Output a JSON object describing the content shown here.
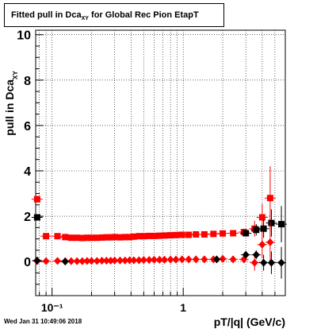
{
  "chart_data": {
    "type": "scatter",
    "title_main": "Fitted pull in Dca",
    "title_sub": "XY",
    "title_rest": " for Global Rec Pion EtapT",
    "xlabel": "pT/|q| (GeV/c)",
    "ylabel": "pull in Dca",
    "ylabel_sub": "XY",
    "x_scale": "log",
    "xlim": [
      0.075,
      6.0
    ],
    "ylim": [
      -1.5,
      10.2
    ],
    "x_tick_labels": [
      "10⁻¹",
      "1"
    ],
    "y_tick_labels": [
      "0",
      "2",
      "4",
      "6",
      "8",
      "10"
    ],
    "grid": true,
    "timestamp": "Wed Jan 31 10:49:06 2018",
    "series": [
      {
        "color": "#ff0000",
        "marker": "square",
        "points": [
          [
            0.077,
            2.75,
            0.15
          ],
          [
            0.09,
            1.12,
            0.06
          ],
          [
            0.11,
            1.12,
            0.04
          ],
          [
            0.126,
            1.08,
            0.03
          ],
          [
            0.14,
            1.05,
            0.03
          ],
          [
            0.155,
            1.05,
            0.03
          ],
          [
            0.17,
            1.04,
            0.03
          ],
          [
            0.185,
            1.05,
            0.03
          ],
          [
            0.2,
            1.05,
            0.03
          ],
          [
            0.22,
            1.05,
            0.03
          ],
          [
            0.24,
            1.06,
            0.03
          ],
          [
            0.26,
            1.07,
            0.03
          ],
          [
            0.28,
            1.07,
            0.03
          ],
          [
            0.3,
            1.08,
            0.03
          ],
          [
            0.33,
            1.07,
            0.03
          ],
          [
            0.36,
            1.08,
            0.03
          ],
          [
            0.39,
            1.08,
            0.03
          ],
          [
            0.42,
            1.1,
            0.03
          ],
          [
            0.46,
            1.12,
            0.03
          ],
          [
            0.5,
            1.12,
            0.03
          ],
          [
            0.55,
            1.13,
            0.03
          ],
          [
            0.6,
            1.13,
            0.03
          ],
          [
            0.66,
            1.14,
            0.03
          ],
          [
            0.72,
            1.15,
            0.03
          ],
          [
            0.8,
            1.16,
            0.04
          ],
          [
            0.88,
            1.17,
            0.04
          ],
          [
            0.98,
            1.18,
            0.04
          ],
          [
            1.1,
            1.18,
            0.04
          ],
          [
            1.25,
            1.2,
            0.05
          ],
          [
            1.45,
            1.2,
            0.06
          ],
          [
            1.7,
            1.22,
            0.07
          ],
          [
            2.0,
            1.24,
            0.08
          ],
          [
            2.4,
            1.25,
            0.1
          ],
          [
            2.9,
            1.3,
            0.15
          ],
          [
            3.5,
            1.45,
            0.35
          ],
          [
            4.0,
            1.95,
            0.6
          ],
          [
            4.6,
            2.8,
            1.4
          ]
        ]
      },
      {
        "color": "#000000",
        "marker": "square",
        "points": [
          [
            0.077,
            1.95,
            0.12
          ],
          [
            3.0,
            1.25,
            0.12
          ],
          [
            3.6,
            1.4,
            0.25
          ],
          [
            4.1,
            1.45,
            0.4
          ],
          [
            4.7,
            1.7,
            0.6
          ],
          [
            5.6,
            1.65,
            0.8
          ]
        ]
      },
      {
        "color": "#ff0000",
        "marker": "diamond",
        "points": [
          [
            0.077,
            0.02,
            0.05
          ],
          [
            0.09,
            0.02,
            0.04
          ],
          [
            0.11,
            0.03,
            0.03
          ],
          [
            0.126,
            0.02,
            0.03
          ],
          [
            0.14,
            0.02,
            0.03
          ],
          [
            0.155,
            0.02,
            0.03
          ],
          [
            0.17,
            0.02,
            0.03
          ],
          [
            0.185,
            0.03,
            0.03
          ],
          [
            0.2,
            0.03,
            0.03
          ],
          [
            0.22,
            0.03,
            0.03
          ],
          [
            0.24,
            0.04,
            0.03
          ],
          [
            0.26,
            0.04,
            0.03
          ],
          [
            0.28,
            0.04,
            0.03
          ],
          [
            0.3,
            0.05,
            0.03
          ],
          [
            0.33,
            0.05,
            0.03
          ],
          [
            0.36,
            0.05,
            0.03
          ],
          [
            0.39,
            0.06,
            0.03
          ],
          [
            0.42,
            0.06,
            0.03
          ],
          [
            0.46,
            0.06,
            0.03
          ],
          [
            0.5,
            0.07,
            0.03
          ],
          [
            0.55,
            0.07,
            0.03
          ],
          [
            0.6,
            0.08,
            0.03
          ],
          [
            0.66,
            0.08,
            0.03
          ],
          [
            0.72,
            0.08,
            0.03
          ],
          [
            0.8,
            0.09,
            0.04
          ],
          [
            0.88,
            0.09,
            0.04
          ],
          [
            0.98,
            0.1,
            0.04
          ],
          [
            1.1,
            0.1,
            0.04
          ],
          [
            1.25,
            0.1,
            0.05
          ],
          [
            1.45,
            0.1,
            0.06
          ],
          [
            1.7,
            0.1,
            0.07
          ],
          [
            2.0,
            0.12,
            0.08
          ],
          [
            2.4,
            0.1,
            0.1
          ],
          [
            2.9,
            0.1,
            0.15
          ],
          [
            3.5,
            -0.05,
            0.35
          ],
          [
            4.0,
            0.75,
            0.6
          ],
          [
            4.6,
            0.85,
            0.9
          ]
        ]
      },
      {
        "color": "#000000",
        "marker": "diamond",
        "points": [
          [
            0.077,
            0.05,
            0.05
          ],
          [
            0.126,
            0.0,
            0.04
          ],
          [
            1.8,
            0.1,
            0.05
          ],
          [
            3.0,
            0.3,
            0.1
          ],
          [
            3.6,
            0.3,
            0.2
          ],
          [
            4.1,
            -0.05,
            0.35
          ],
          [
            4.7,
            -0.05,
            0.5
          ],
          [
            5.6,
            -0.05,
            0.7
          ]
        ]
      }
    ]
  }
}
